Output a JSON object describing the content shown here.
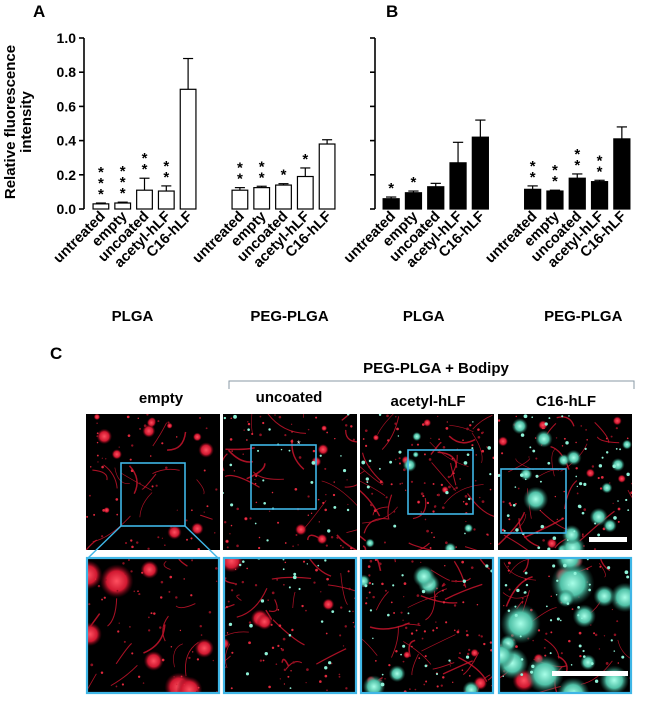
{
  "panels": {
    "a": "A",
    "b": "B",
    "c": "C"
  },
  "ylabel_lines": [
    "Relative fluorescence",
    "intensity"
  ],
  "chart_data": [
    {
      "type": "bar",
      "panel": "A",
      "fill": "#ffffff",
      "ylim": [
        0,
        1.0
      ],
      "yticks": [
        "0.0",
        "0.2",
        "0.4",
        "0.6",
        "0.8",
        "1.0"
      ],
      "groups": [
        {
          "label": "PLGA",
          "categories": [
            "untreated",
            "empty",
            "uncoated",
            "acetyl-hLF",
            "C16-hLF"
          ],
          "values": [
            0.03,
            0.035,
            0.11,
            0.105,
            0.7
          ],
          "errors": [
            0.005,
            0.005,
            0.07,
            0.03,
            0.18
          ],
          "significance": [
            "***",
            "***",
            "**",
            "**",
            ""
          ]
        },
        {
          "label": "PEG-PLGA",
          "categories": [
            "untreated",
            "empty",
            "uncoated",
            "acetyl-hLF",
            "C16-hLF"
          ],
          "values": [
            0.11,
            0.125,
            0.14,
            0.19,
            0.38
          ],
          "errors": [
            0.015,
            0.008,
            0.008,
            0.05,
            0.025
          ],
          "significance": [
            "**",
            "**",
            "*",
            "*",
            ""
          ]
        }
      ]
    },
    {
      "type": "bar",
      "panel": "B",
      "fill": "#000000",
      "ylim": [
        0,
        1.0
      ],
      "groups": [
        {
          "label": "PLGA",
          "categories": [
            "untreated",
            "empty",
            "uncoated",
            "acetyl-hLF",
            "C16-hLF"
          ],
          "values": [
            0.06,
            0.095,
            0.13,
            0.27,
            0.42
          ],
          "errors": [
            0.01,
            0.01,
            0.02,
            0.12,
            0.1
          ],
          "significance": [
            "*",
            "*",
            "",
            "",
            ""
          ]
        },
        {
          "label": "PEG-PLGA",
          "categories": [
            "untreated",
            "empty",
            "uncoated",
            "acetyl-hLF",
            "C16-hLF"
          ],
          "values": [
            0.115,
            0.105,
            0.18,
            0.16,
            0.41
          ],
          "errors": [
            0.02,
            0.005,
            0.025,
            0.008,
            0.07
          ],
          "significance": [
            "**",
            "**",
            "**",
            "**",
            ""
          ]
        }
      ]
    }
  ],
  "microscopy": {
    "header_group": "PEG-PLGA + Bodipy",
    "columns": [
      "empty",
      "uncoated",
      "acetyl-hLF",
      "C16-hLF"
    ]
  }
}
